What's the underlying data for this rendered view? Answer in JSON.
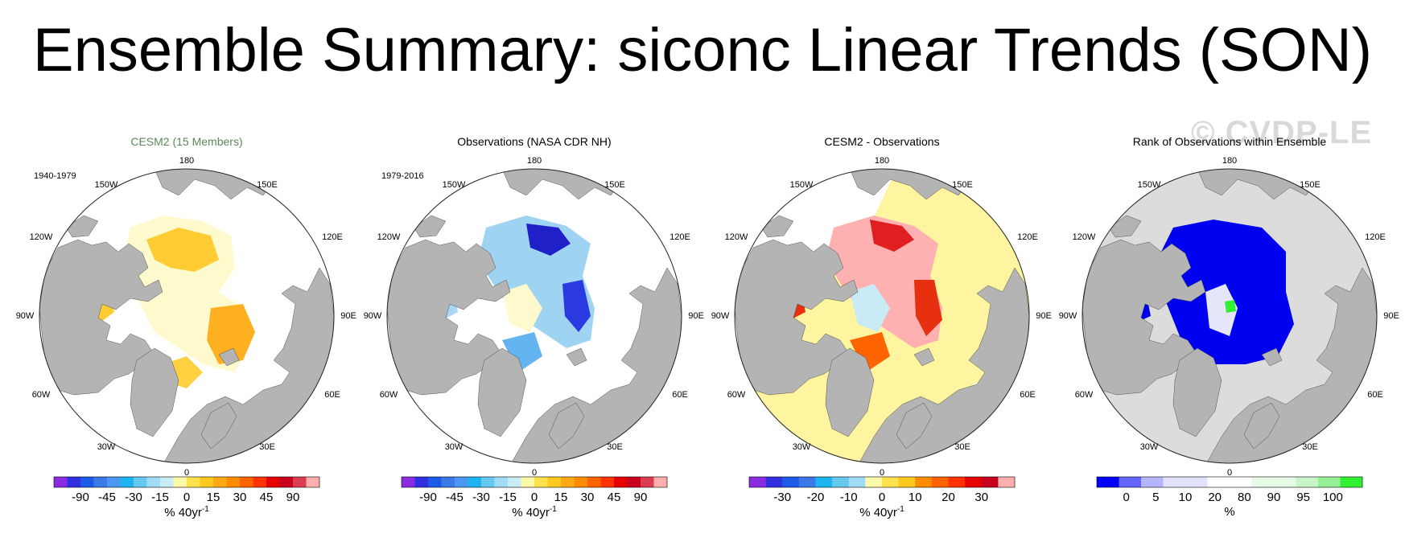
{
  "title": "Ensemble Summary: siconc Linear Trends (SON)",
  "watermark": "© CVDP-LE",
  "longitude_labels": {
    "top": "180",
    "bottom": "0",
    "upper_left": "150W",
    "upper_right": "150E",
    "left_upper": "120W",
    "right_upper": "120E",
    "left": "90W",
    "right": "90E",
    "left_lower": "60W",
    "right_lower": "60E",
    "lower_left": "30W",
    "lower_right": "30E"
  },
  "panels": [
    {
      "title": "CESM2 (15 Members)",
      "title_color": "#5a8a5a",
      "period": "1940-1979",
      "background": "ocean-white",
      "colorbar": {
        "colors": [
          "#8a2be2",
          "#3030e0",
          "#1e5ae8",
          "#3c78e8",
          "#4a96f0",
          "#1eb4f0",
          "#64c8f0",
          "#a0dcf5",
          "#c8ebf5",
          "#fffaaa",
          "#ffe14b",
          "#ffc81e",
          "#ffaa14",
          "#ff8c00",
          "#ff6400",
          "#ff3200",
          "#e60000",
          "#c8001e",
          "#dc3c50",
          "#ffafaf"
        ],
        "labels": [
          "-90",
          "-45",
          "-30",
          "-15",
          "0",
          "15",
          "30",
          "45",
          "90"
        ],
        "units": "% 40yr",
        "units_sup": "-1"
      }
    },
    {
      "title": "Observations (NASA CDR NH)",
      "title_color": "#000000",
      "period": "1979-2016",
      "background": "ocean-white",
      "colorbar": {
        "colors": [
          "#8a2be2",
          "#3030e0",
          "#1e5ae8",
          "#3c78e8",
          "#4a96f0",
          "#1eb4f0",
          "#64c8f0",
          "#a0dcf5",
          "#c8ebf5",
          "#fffaaa",
          "#ffe14b",
          "#ffc81e",
          "#ffaa14",
          "#ff8c00",
          "#ff6400",
          "#ff3200",
          "#e60000",
          "#c8001e",
          "#dc3c50",
          "#ffafaf"
        ],
        "labels": [
          "-90",
          "-45",
          "-30",
          "-15",
          "0",
          "15",
          "30",
          "45",
          "90"
        ],
        "units": "% 40yr",
        "units_sup": "-1"
      }
    },
    {
      "title": "CESM2 - Observations",
      "title_color": "#000000",
      "period": "",
      "background": "yellow-band",
      "colorbar": {
        "colors": [
          "#8a2be2",
          "#3030e0",
          "#1e5ae8",
          "#3c78e8",
          "#1eb4f0",
          "#64c8f0",
          "#a0dcf5",
          "#fffaaa",
          "#ffe14b",
          "#ffc81e",
          "#ff8c00",
          "#ff6400",
          "#ff3200",
          "#e60000",
          "#c8001e",
          "#ffafaf"
        ],
        "labels": [
          "-30",
          "-20",
          "-10",
          "0",
          "10",
          "20",
          "30"
        ],
        "units": "% 40yr",
        "units_sup": "-1"
      }
    },
    {
      "title": "Rank of Observations within Ensemble",
      "title_color": "#000000",
      "period": "",
      "background": "ocean-gray",
      "colorbar": {
        "colors": [
          "#0000ff",
          "#6464ff",
          "#b4b4ff",
          "#e1e1fa",
          "#e1e1fa",
          "#ffffff",
          "#ffffff",
          "#e6fae6",
          "#e6fae6",
          "#c8f5c8",
          "#96f096",
          "#32f032"
        ],
        "labels": [
          "0",
          "5",
          "10",
          "20",
          "80",
          "90",
          "95",
          "100"
        ],
        "units": "%",
        "units_sup": ""
      }
    }
  ]
}
